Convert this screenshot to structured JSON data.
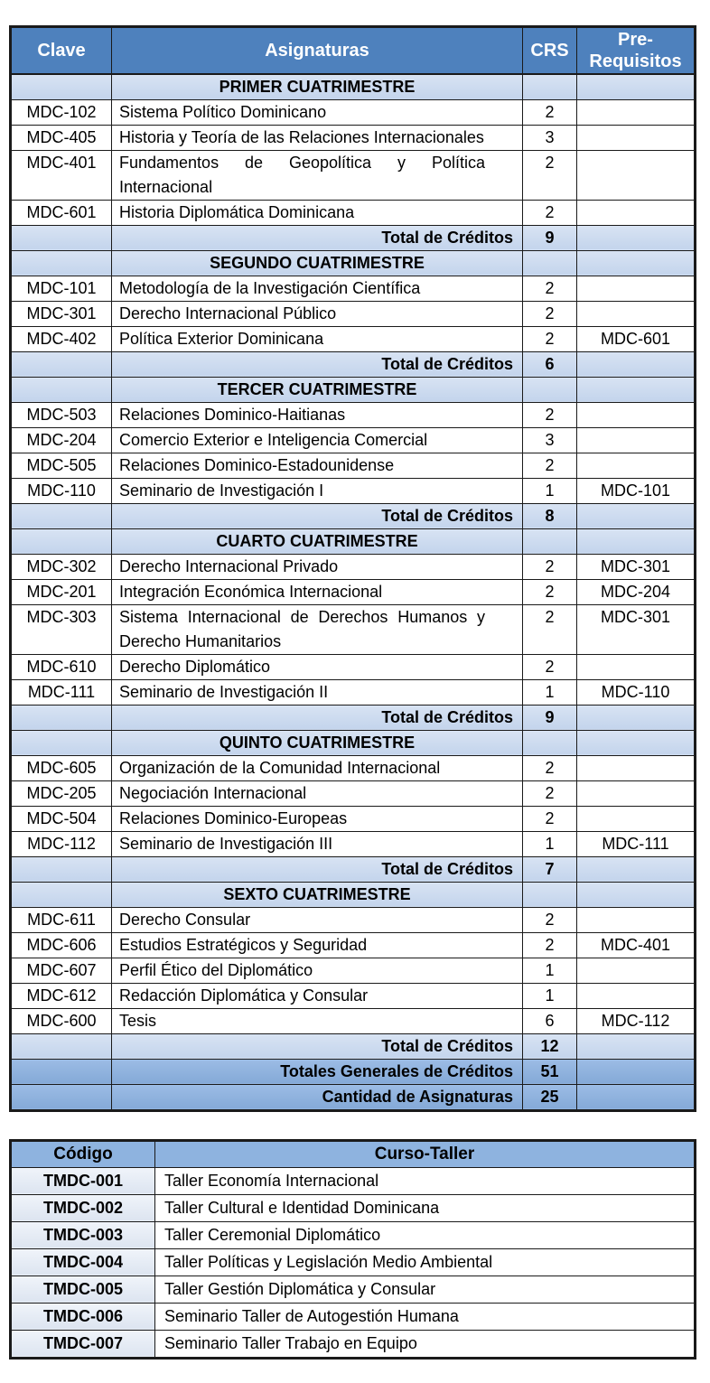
{
  "colors": {
    "header-bg": "#4e81bd",
    "band-top": "#d8e3f3",
    "band-bottom": "#c3d4ec",
    "grand-top": "#9cbce5",
    "grand-bottom": "#84a9d7",
    "t2-header-bg": "#8eb3df",
    "code-top": "#f0f4fa",
    "code-bottom": "#dce4f0",
    "border": "#1a1a1a",
    "header-text": "#ffffff",
    "text": "#000000"
  },
  "curriculum_table": {
    "headers": [
      "Clave",
      "Asignaturas",
      "CRS",
      "Pre-Requisitos"
    ],
    "sections": [
      {
        "title": "PRIMER CUATRIMESTRE",
        "courses": [
          {
            "code": "MDC-102",
            "name": "Sistema Político Dominicano",
            "crs": "2",
            "prereq": ""
          },
          {
            "code": "MDC-405",
            "name": "Historia y Teoría de las Relaciones Internacionales",
            "crs": "3",
            "prereq": ""
          },
          {
            "code": "MDC-401",
            "name": "Fundamentos de Geopolítica y Política Internacional",
            "crs": "2",
            "prereq": "",
            "wrap": true
          },
          {
            "code": "MDC-601",
            "name": "Historia Diplomática Dominicana",
            "crs": "2",
            "prereq": ""
          }
        ],
        "total_label": "Total de Créditos",
        "total": "9"
      },
      {
        "title": "SEGUNDO CUATRIMESTRE",
        "courses": [
          {
            "code": "MDC-101",
            "name": "Metodología de la Investigación Científica",
            "crs": "2",
            "prereq": ""
          },
          {
            "code": "MDC-301",
            "name": "Derecho Internacional Público",
            "crs": "2",
            "prereq": ""
          },
          {
            "code": "MDC-402",
            "name": "Política Exterior Dominicana",
            "crs": "2",
            "prereq": "MDC-601"
          }
        ],
        "total_label": "Total de Créditos",
        "total": "6"
      },
      {
        "title": "TERCER CUATRIMESTRE",
        "courses": [
          {
            "code": "MDC-503",
            "name": "Relaciones Dominico-Haitianas",
            "crs": "2",
            "prereq": ""
          },
          {
            "code": "MDC-204",
            "name": "Comercio Exterior e Inteligencia Comercial",
            "crs": "3",
            "prereq": ""
          },
          {
            "code": "MDC-505",
            "name": "Relaciones Dominico-Estadounidense",
            "crs": "2",
            "prereq": ""
          },
          {
            "code": "MDC-110",
            "name": "Seminario de Investigación I",
            "crs": "1",
            "prereq": "MDC-101"
          }
        ],
        "total_label": "Total de Créditos",
        "total": "8"
      },
      {
        "title": "CUARTO CUATRIMESTRE",
        "courses": [
          {
            "code": "MDC-302",
            "name": "Derecho Internacional Privado",
            "crs": "2",
            "prereq": "MDC-301"
          },
          {
            "code": "MDC-201",
            "name": "Integración Económica Internacional",
            "crs": "2",
            "prereq": "MDC-204"
          },
          {
            "code": "MDC-303",
            "name": "Sistema Internacional de Derechos Humanos y Derecho Humanitarios",
            "crs": "2",
            "prereq": "MDC-301",
            "wrap": true
          },
          {
            "code": "MDC-610",
            "name": "Derecho Diplomático",
            "crs": "2",
            "prereq": ""
          },
          {
            "code": "MDC-111",
            "name": "Seminario de Investigación II",
            "crs": "1",
            "prereq": "MDC-110"
          }
        ],
        "total_label": "Total de Créditos",
        "total": "9"
      },
      {
        "title": "QUINTO CUATRIMESTRE",
        "courses": [
          {
            "code": "MDC-605",
            "name": "Organización de la Comunidad Internacional",
            "crs": "2",
            "prereq": ""
          },
          {
            "code": "MDC-205",
            "name": "Negociación Internacional",
            "crs": "2",
            "prereq": ""
          },
          {
            "code": "MDC-504",
            "name": "Relaciones Dominico-Europeas",
            "crs": "2",
            "prereq": ""
          },
          {
            "code": "MDC-112",
            "name": "Seminario de Investigación III",
            "crs": "1",
            "prereq": "MDC-111"
          }
        ],
        "total_label": "Total de Créditos",
        "total": "7"
      },
      {
        "title": "SEXTO CUATRIMESTRE",
        "courses": [
          {
            "code": "MDC-611",
            "name": "Derecho Consular",
            "crs": "2",
            "prereq": ""
          },
          {
            "code": "MDC-606",
            "name": "Estudios Estratégicos y Seguridad",
            "crs": "2",
            "prereq": "MDC-401"
          },
          {
            "code": "MDC-607",
            "name": "Perfil Ético del Diplomático",
            "crs": "1",
            "prereq": ""
          },
          {
            "code": "MDC-612",
            "name": "Redacción Diplomática y Consular",
            "crs": "1",
            "prereq": ""
          },
          {
            "code": "MDC-600",
            "name": "Tesis",
            "crs": "6",
            "prereq": "MDC-112"
          }
        ],
        "total_label": "Total de Créditos",
        "total": "12"
      }
    ],
    "grand_totals": [
      {
        "label": "Totales Generales de Créditos",
        "value": "51"
      },
      {
        "label": "Cantidad de Asignaturas",
        "value": "25"
      }
    ]
  },
  "workshops_table": {
    "headers": [
      "Código",
      "Curso-Taller"
    ],
    "rows": [
      {
        "code": "TMDC-001",
        "name": "Taller Economía Internacional"
      },
      {
        "code": "TMDC-002",
        "name": "Taller Cultural e Identidad Dominicana"
      },
      {
        "code": "TMDC-003",
        "name": "Taller Ceremonial Diplomático"
      },
      {
        "code": "TMDC-004",
        "name": "Taller Políticas y Legislación Medio Ambiental"
      },
      {
        "code": "TMDC-005",
        "name": "Taller Gestión Diplomática y Consular"
      },
      {
        "code": "TMDC-006",
        "name": "Seminario Taller de Autogestión Humana"
      },
      {
        "code": "TMDC-007",
        "name": "Seminario Taller Trabajo en Equipo"
      }
    ]
  }
}
